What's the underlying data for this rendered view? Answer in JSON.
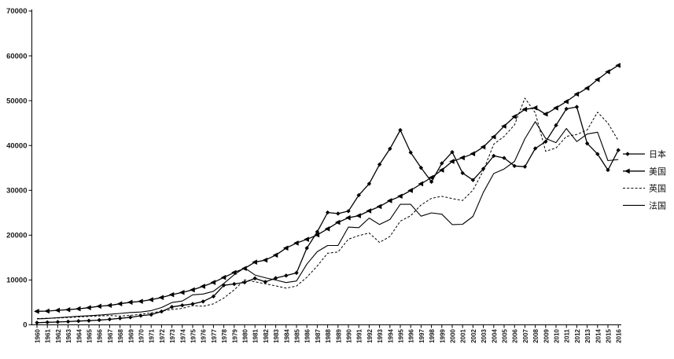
{
  "chart_data": {
    "type": "line",
    "title": "",
    "xlabel": "",
    "ylabel": "",
    "background": "#ffffff",
    "axis_color": "#000000",
    "grid": false,
    "legend_position": "right",
    "ylim": [
      0,
      70000
    ],
    "yticks": [
      0,
      10000,
      20000,
      30000,
      40000,
      50000,
      60000,
      70000
    ],
    "ytick_labels": [
      "0",
      "10000",
      "20000",
      "30000",
      "40000",
      "50000",
      "60000",
      "70000"
    ],
    "x": [
      1960,
      1961,
      1962,
      1963,
      1964,
      1965,
      1966,
      1967,
      1968,
      1969,
      1970,
      1971,
      1972,
      1973,
      1974,
      1975,
      1976,
      1977,
      1978,
      1979,
      1980,
      1981,
      1982,
      1983,
      1984,
      1985,
      1986,
      1987,
      1988,
      1989,
      1990,
      1991,
      1992,
      1993,
      1994,
      1995,
      1996,
      1997,
      1998,
      1999,
      2000,
      2001,
      2002,
      2003,
      2004,
      2005,
      2006,
      2007,
      2008,
      2009,
      2010,
      2011,
      2012,
      2013,
      2014,
      2015,
      2016
    ],
    "series": [
      {
        "key": "japan",
        "name": "日本",
        "color": "#000000",
        "marker": "diamond",
        "dash": "solid",
        "line_width": 1.3,
        "values": [
          479,
          564,
          634,
          718,
          836,
          920,
          1058,
          1229,
          1451,
          1669,
          2038,
          2272,
          2967,
          3998,
          4353,
          4659,
          5197,
          6335,
          8821,
          9105,
          9465,
          10361,
          9578,
          10425,
          10984,
          11585,
          17112,
          20745,
          25059,
          24813,
          25359,
          28925,
          31465,
          35766,
          39268,
          43440,
          38437,
          35021,
          31903,
          36027,
          38532,
          33846,
          32289,
          34808,
          37689,
          37218,
          35434,
          35275,
          39339,
          40855,
          44508,
          48168,
          48603,
          40454,
          38096,
          34524,
          38972
        ]
      },
      {
        "key": "usa",
        "name": "美国",
        "color": "#000000",
        "marker": "triangle-left",
        "dash": "solid",
        "line_width": 1.3,
        "values": [
          3007,
          3067,
          3244,
          3375,
          3574,
          3828,
          4146,
          4336,
          4696,
          5032,
          5234,
          5609,
          6094,
          6726,
          7226,
          7801,
          8592,
          9453,
          10565,
          11674,
          12575,
          13976,
          14434,
          15544,
          17121,
          18237,
          19071,
          20039,
          21417,
          22857,
          23889,
          24342,
          25419,
          26387,
          27695,
          28691,
          29968,
          31459,
          32854,
          34514,
          36450,
          37274,
          38166,
          39677,
          41922,
          44308,
          46437,
          48062,
          48401,
          47002,
          48375,
          49794,
          51451,
          52787,
          54697,
          56444,
          57867
        ]
      },
      {
        "key": "uk",
        "name": "英国",
        "color": "#000000",
        "marker": "none",
        "dash": "dashed",
        "line_width": 1.0,
        "values": [
          1398,
          1472,
          1526,
          1613,
          1748,
          1874,
          1987,
          2059,
          1952,
          2101,
          2348,
          2650,
          3031,
          3426,
          3666,
          4300,
          4138,
          4681,
          5977,
          7805,
          10032,
          9599,
          9146,
          8691,
          8179,
          8652,
          10611,
          13119,
          15987,
          16239,
          19095,
          19900,
          20487,
          18389,
          19709,
          23123,
          24333,
          26734,
          28214,
          28670,
          28150,
          27744,
          30057,
          34419,
          40290,
          42030,
          44600,
          50567,
          47287,
          38713,
          39436,
          42039,
          42463,
          43446,
          47426,
          44975,
          41064
        ]
      },
      {
        "key": "france",
        "name": "法国",
        "color": "#000000",
        "marker": "none",
        "dash": "solid",
        "line_width": 1.1,
        "values": [
          1335,
          1428,
          1587,
          1748,
          1918,
          2039,
          2181,
          2343,
          2537,
          2752,
          2853,
          3168,
          3855,
          4969,
          5315,
          6690,
          6867,
          7489,
          9238,
          11180,
          12713,
          11105,
          10493,
          9993,
          9420,
          9771,
          13536,
          16313,
          17697,
          17694,
          21794,
          21675,
          23814,
          22380,
          23497,
          26890,
          26871,
          24229,
          24974,
          24673,
          22364,
          22434,
          24177,
          29568,
          33741,
          34760,
          36444,
          41508,
          45334,
          41575,
          40638,
          43790,
          40875,
          42554,
          42955,
          36613,
          36870
        ]
      }
    ]
  }
}
